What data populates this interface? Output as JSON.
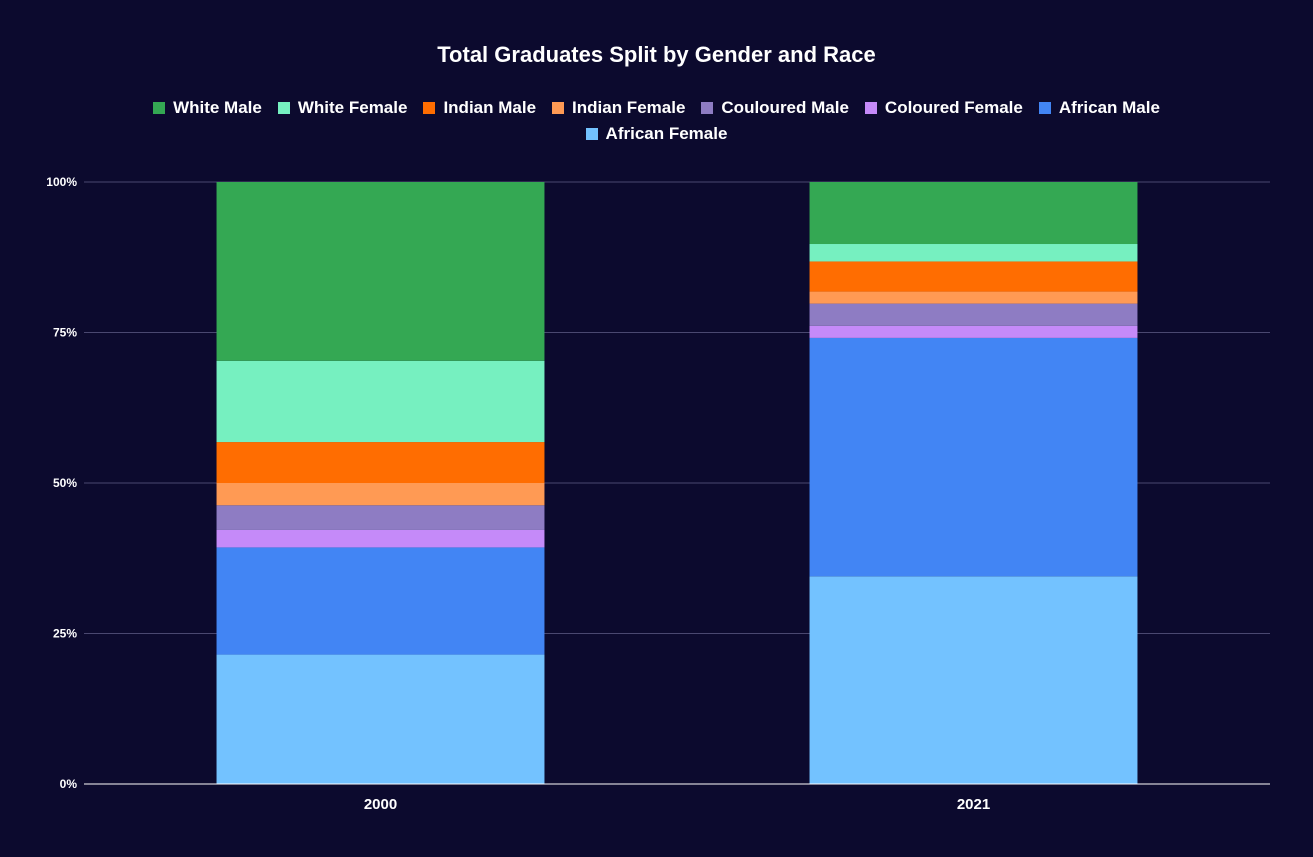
{
  "chart_data": {
    "type": "bar",
    "stacked": true,
    "title": "Total Graduates Split by Gender and Race",
    "xlabel": "",
    "ylabel": "",
    "categories": [
      "2000",
      "2021"
    ],
    "y_ticks": [
      "0%",
      "25%",
      "50%",
      "75%",
      "100%"
    ],
    "ylim": [
      0,
      100
    ],
    "grid": true,
    "legend_position": "top",
    "series": [
      {
        "name": "African Female",
        "color": "#73c2ff",
        "values": [
          21.5,
          34.5
        ]
      },
      {
        "name": "African Male",
        "color": "#4285f4",
        "values": [
          17.8,
          39.6
        ]
      },
      {
        "name": "Coloured Female",
        "color": "#c58af9",
        "values": [
          2.9,
          2.0
        ]
      },
      {
        "name": "Couloured Male",
        "color": "#8e7cc3",
        "values": [
          4.1,
          3.7
        ]
      },
      {
        "name": "Indian Female",
        "color": "#ff9a54",
        "values": [
          3.7,
          2.0
        ]
      },
      {
        "name": "Indian Male",
        "color": "#ff6d01",
        "values": [
          6.8,
          5.0
        ]
      },
      {
        "name": "White Female",
        "color": "#76f0c0",
        "values": [
          13.5,
          2.9
        ]
      },
      {
        "name": "White Male",
        "color": "#34a853",
        "values": [
          29.7,
          10.3
        ]
      }
    ],
    "legend_order": [
      "White Male",
      "White Female",
      "Indian Male",
      "Indian Female",
      "Couloured Male",
      "Coloured Female",
      "African Male",
      "African Female"
    ]
  },
  "colors": {
    "background": "#0c0a2e",
    "gridline": "#4a4870",
    "axis": "#ffffff",
    "text": "#ffffff"
  }
}
